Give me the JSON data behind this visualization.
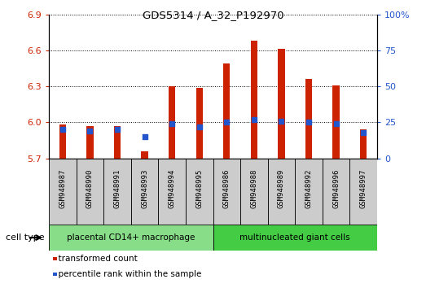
{
  "title": "GDS5314 / A_32_P192970",
  "samples": [
    "GSM948987",
    "GSM948990",
    "GSM948991",
    "GSM948993",
    "GSM948994",
    "GSM948995",
    "GSM948986",
    "GSM948988",
    "GSM948989",
    "GSM948992",
    "GSM948996",
    "GSM948997"
  ],
  "transformed_count": [
    5.98,
    5.97,
    5.97,
    5.76,
    6.3,
    6.29,
    6.49,
    6.68,
    6.61,
    6.36,
    6.31,
    5.94
  ],
  "percentile_rank": [
    20,
    19,
    20,
    15,
    24,
    22,
    25,
    27,
    26,
    25,
    24,
    18
  ],
  "groups": [
    {
      "label": "placental CD14+ macrophage",
      "start": 0,
      "end": 6,
      "color": "#88dd88"
    },
    {
      "label": "multinucleated giant cells",
      "start": 6,
      "end": 12,
      "color": "#44cc44"
    }
  ],
  "ylim_left": [
    5.7,
    6.9
  ],
  "ylim_right": [
    0,
    100
  ],
  "yticks_left": [
    5.7,
    6.0,
    6.3,
    6.6,
    6.9
  ],
  "yticks_right": [
    0,
    25,
    50,
    75,
    100
  ],
  "bar_color": "#cc2200",
  "dot_color": "#2255cc",
  "bg_color": "#ffffff",
  "grid_color": "#000000",
  "tick_label_color_left": "#cc2200",
  "tick_label_color_right": "#2255cc",
  "cell_type_label": "cell type",
  "legend_items": [
    {
      "color": "#cc2200",
      "label": "transformed count"
    },
    {
      "color": "#2255cc",
      "label": "percentile rank within the sample"
    }
  ],
  "sample_bg_color": "#cccccc",
  "bar_width": 0.25
}
